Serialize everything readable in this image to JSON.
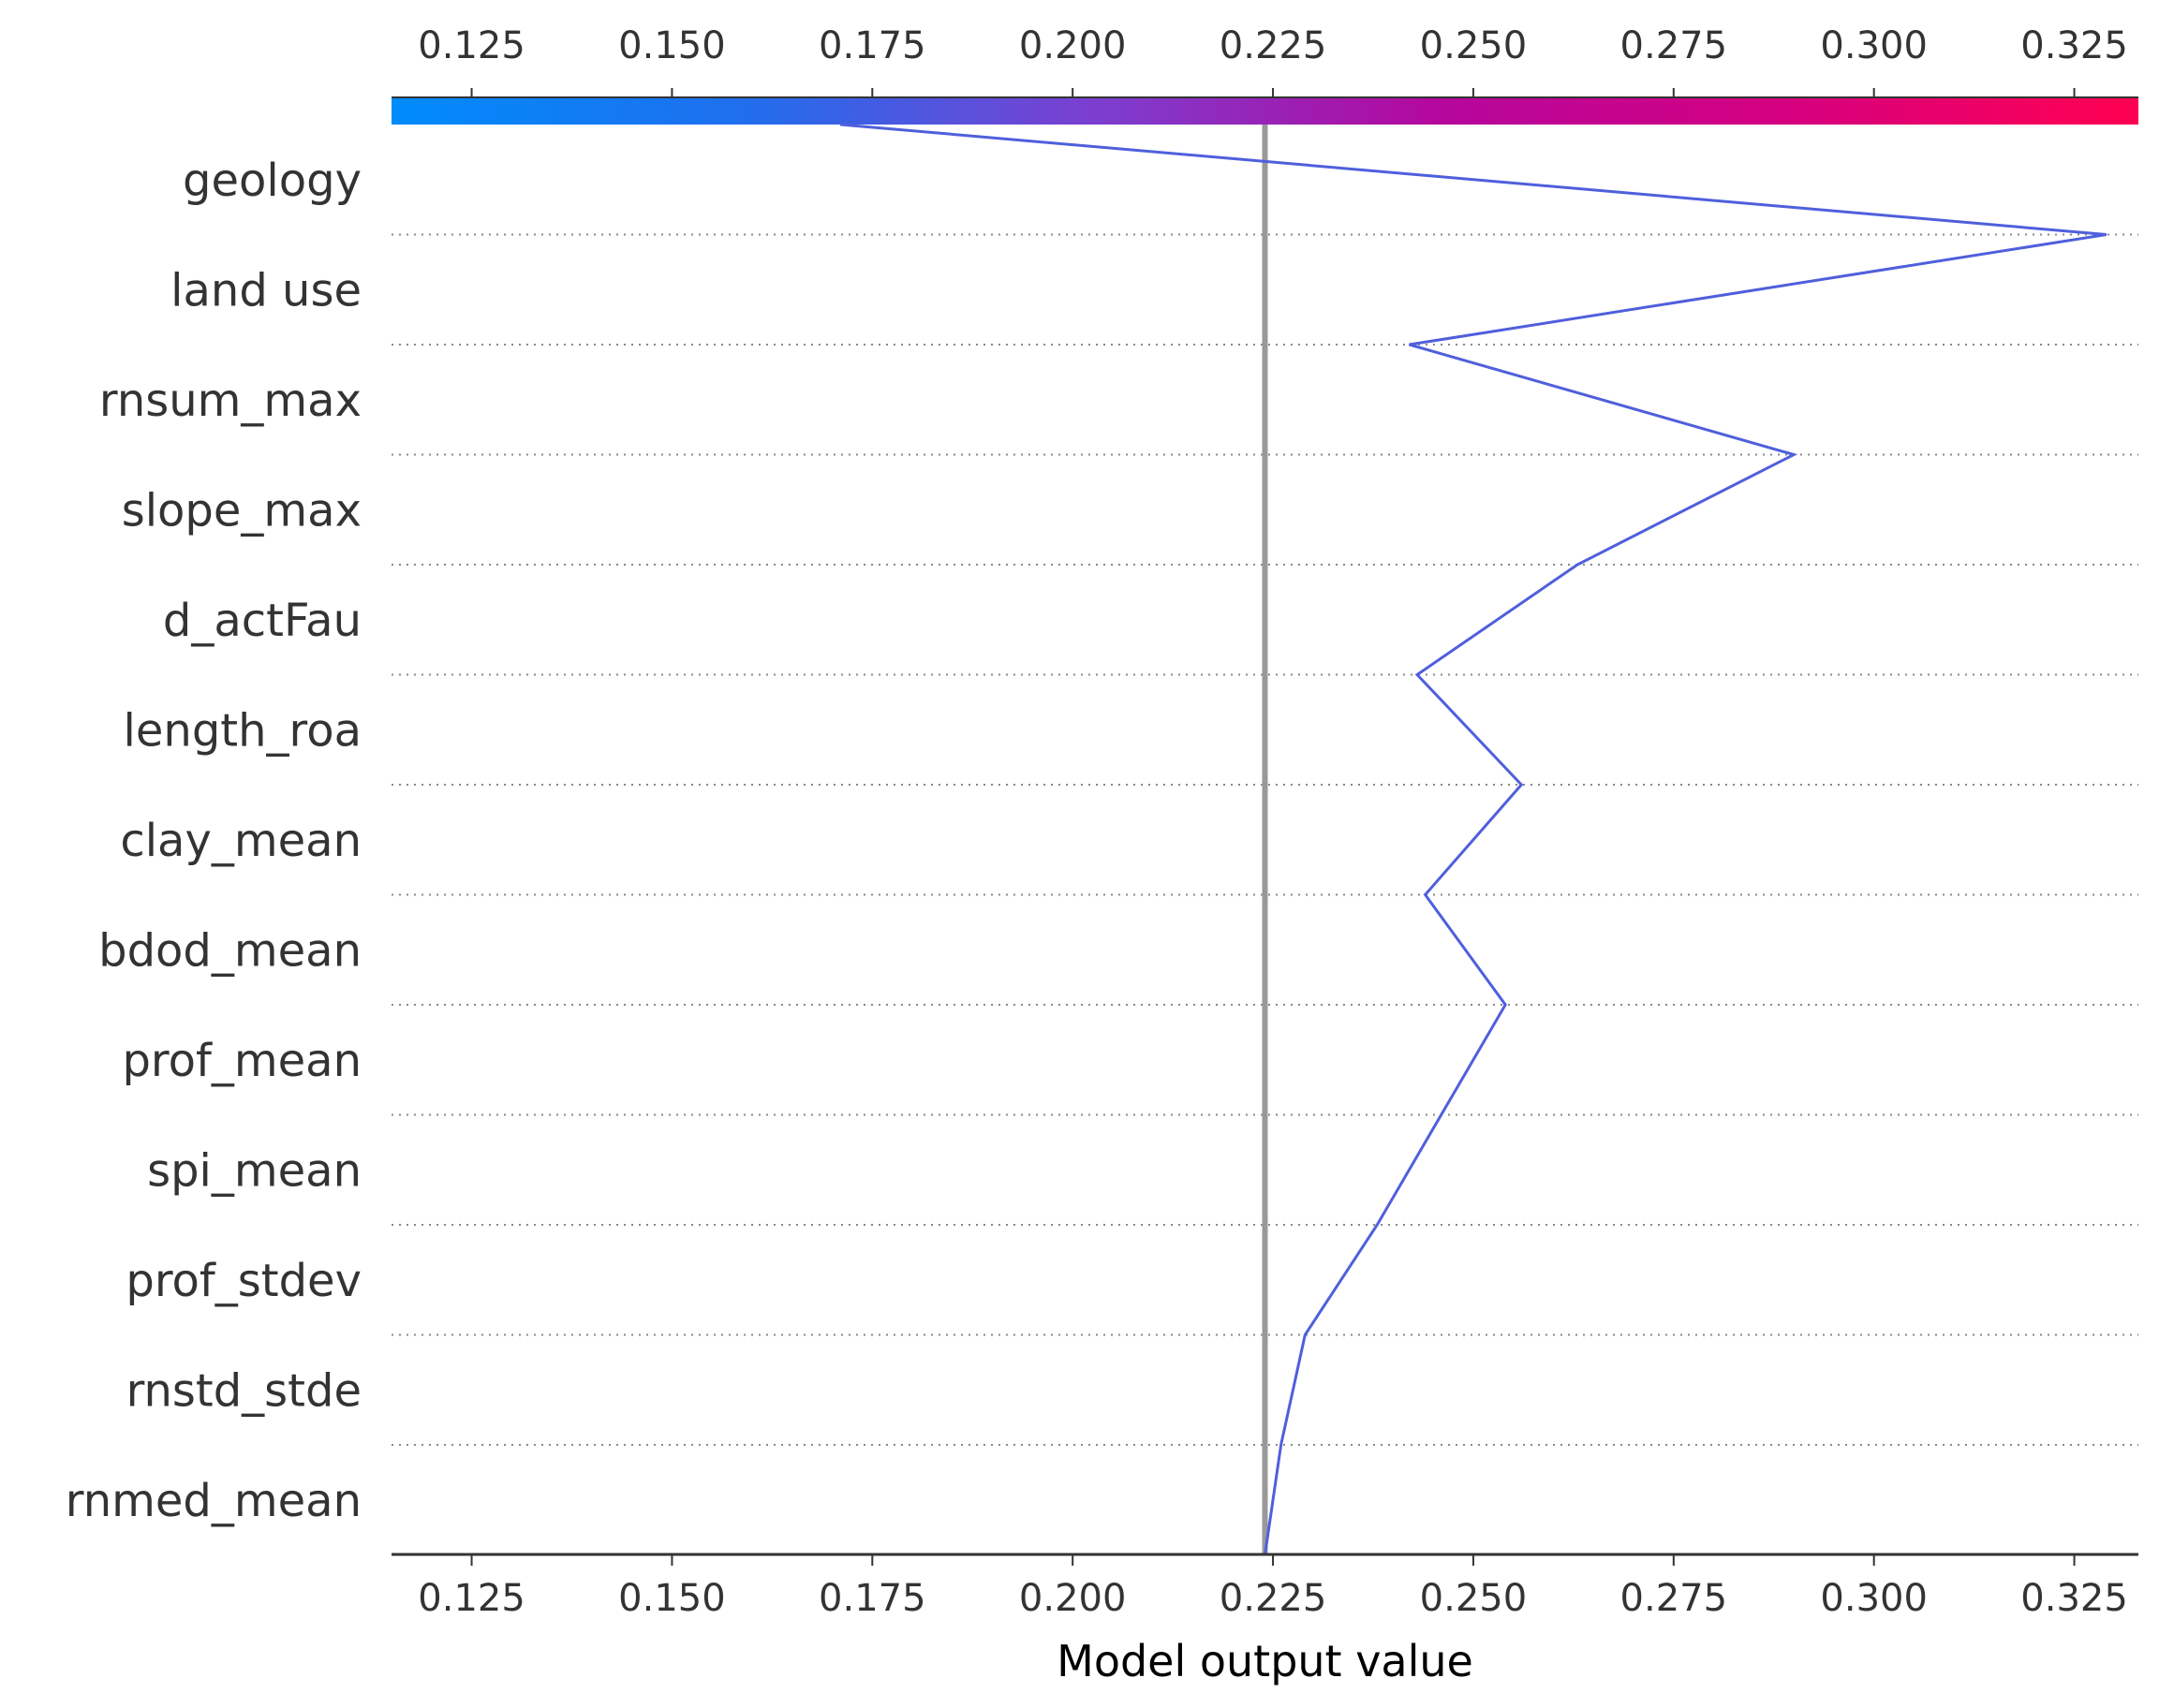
{
  "chart_data": {
    "type": "line",
    "title": "",
    "xlabel": "Model output value",
    "ylabel": "",
    "xlim": [
      0.115,
      0.333
    ],
    "x_ticks": [
      0.125,
      0.15,
      0.175,
      0.2,
      0.225,
      0.25,
      0.275,
      0.3,
      0.325
    ],
    "x_tick_labels": [
      "0.125",
      "0.150",
      "0.175",
      "0.200",
      "0.225",
      "0.250",
      "0.275",
      "0.300",
      "0.325"
    ],
    "base_value": 0.224,
    "features": [
      "geology",
      "land use",
      "rnsum_max",
      "slope_max",
      "d_actFau",
      "length_roa",
      "clay_mean",
      "bdod_mean",
      "prof_mean",
      "spi_mean",
      "prof_stdev",
      "rnstd_stde",
      "rnmed_mean"
    ],
    "path_values": [
      0.171,
      0.329,
      0.242,
      0.29,
      0.263,
      0.243,
      0.256,
      0.244,
      0.254,
      0.246,
      0.238,
      0.229,
      0.226,
      0.224
    ],
    "grid": "dotted",
    "legend": "none",
    "colors": {
      "line": "#4f5fdc",
      "base_line": "#999999",
      "colorbar": [
        "#008bfb",
        "#1f6fee",
        "#7b3fd0",
        "#b5079d",
        "#d5007f",
        "#ff0051"
      ],
      "text": "#333333",
      "axis": "#333333",
      "grid": "#888888"
    }
  }
}
